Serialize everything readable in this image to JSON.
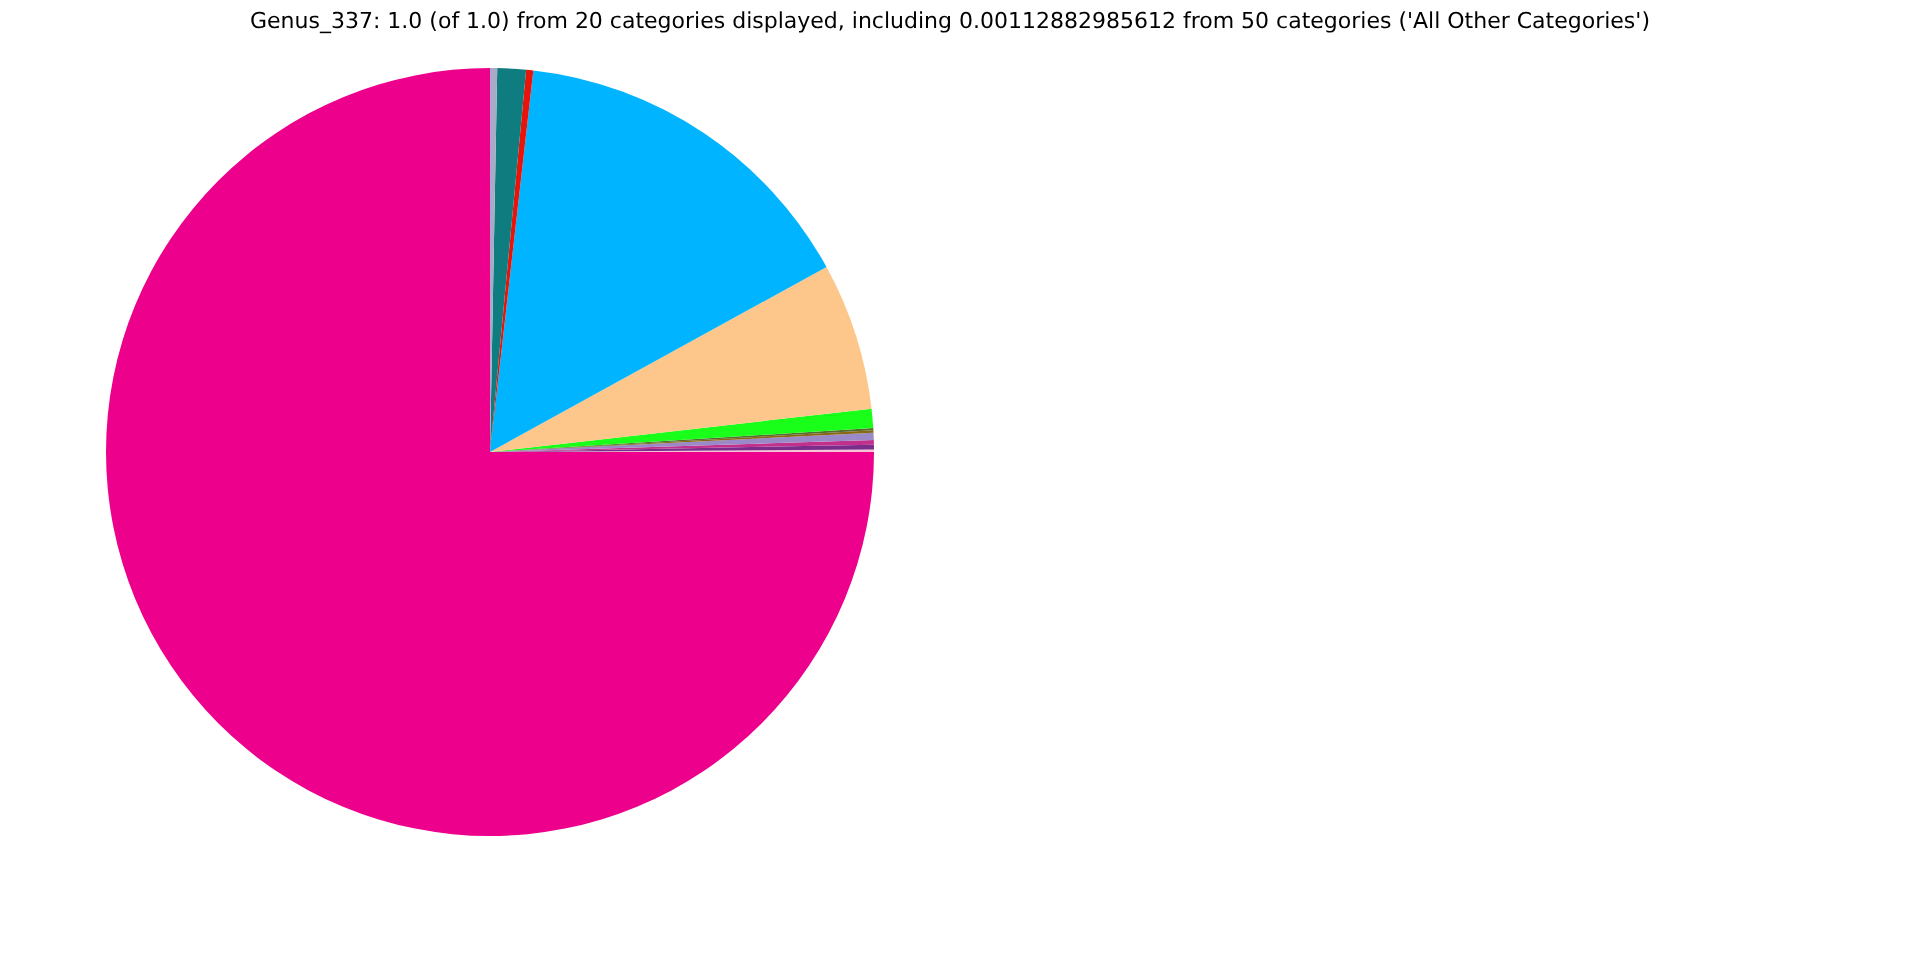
{
  "chart_data": {
    "type": "pie",
    "title": "Genus_337: 1.0 (of 1.0) from 20 categories displayed, including 0.00112882985612 from 50 categories ('All Other Categories')",
    "categories": [
      null,
      null,
      null,
      null,
      null,
      null,
      null,
      null,
      null,
      null,
      null,
      null,
      null
    ],
    "values": [
      0.1,
      0.2,
      0.2,
      0.3,
      0.1,
      0.1,
      0.8,
      6.2,
      15.2,
      0.3,
      1.2,
      0.3,
      75.0
    ],
    "colors": [
      "#f5c6d6",
      "#7b2d8b",
      "#c0308c",
      "#9a8ac8",
      "#8b6914",
      "#556b2f",
      "#1aff1a",
      "#fdc68a",
      "#00b4ff",
      "#e8140c",
      "#0f7c80",
      "#a9a9c8",
      "#ec008c"
    ],
    "legend": false
  }
}
